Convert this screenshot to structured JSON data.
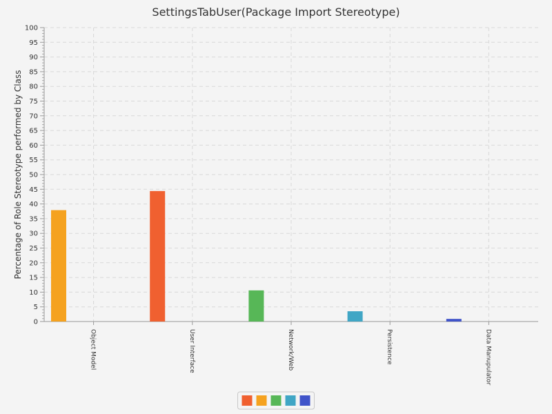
{
  "chart_data": {
    "type": "bar",
    "title": "SettingsTabUser(Package Import Stereotype)",
    "xlabel": "",
    "ylabel": "Percentage of Role Stereotype performed by Class",
    "categories": [
      "Object Model",
      "User Interface",
      "Network/Web",
      "Persistence",
      "Data Manupulator"
    ],
    "series": [
      {
        "values": [
          0,
          44.4,
          0,
          0,
          0
        ],
        "color": "#f06030"
      },
      {
        "values": [
          37.9,
          0,
          0,
          0,
          0
        ],
        "color": "#f5a21f"
      },
      {
        "values": [
          0,
          0,
          10.6,
          0,
          0
        ],
        "color": "#57b757"
      },
      {
        "values": [
          0,
          0,
          0,
          3.5,
          0
        ],
        "color": "#40a6c5"
      },
      {
        "values": [
          0,
          0,
          0,
          0,
          0.9
        ],
        "color": "#4054c9"
      }
    ],
    "ylim": [
      0,
      100
    ],
    "ytick_step": 5,
    "grid": true,
    "legend_position": "bottom-center"
  }
}
